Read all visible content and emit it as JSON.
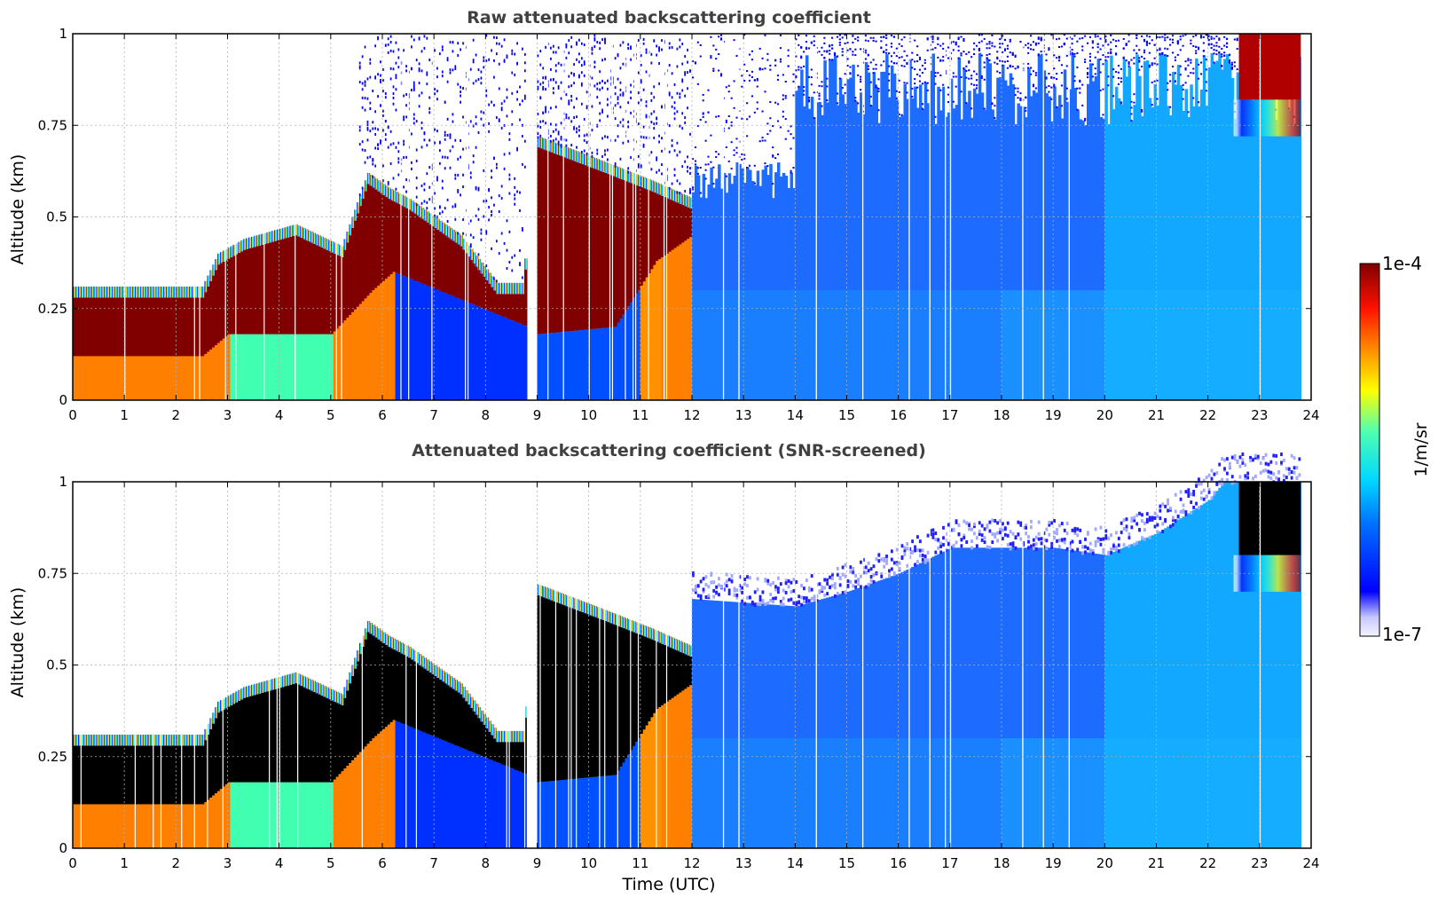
{
  "chart_data": [
    {
      "type": "heatmap",
      "title": "Raw attenuated backscattering coefficient",
      "xlabel": "",
      "ylabel": "Altitude (km)",
      "xlim": [
        0,
        24
      ],
      "ylim": [
        0,
        1
      ],
      "xticks": [
        "0",
        "1",
        "2",
        "3",
        "4",
        "5",
        "6",
        "7",
        "8",
        "9",
        "10",
        "11",
        "12",
        "13",
        "14",
        "15",
        "16",
        "17",
        "18",
        "19",
        "20",
        "21",
        "22",
        "23",
        "24"
      ],
      "yticks": [
        "0",
        "0.25",
        "0.5",
        "0.75",
        "1"
      ],
      "grid": true,
      "screened": false,
      "data_end_hour": 23.8,
      "cloud_top_km": [
        [
          0,
          0.31
        ],
        [
          2.5,
          0.31
        ],
        [
          2.8,
          0.4
        ],
        [
          3.3,
          0.44
        ],
        [
          4.3,
          0.48
        ],
        [
          5.2,
          0.42
        ],
        [
          5.7,
          0.62
        ],
        [
          6.1,
          0.58
        ],
        [
          6.5,
          0.55
        ],
        [
          7.5,
          0.45
        ],
        [
          8.2,
          0.32
        ],
        [
          8.7,
          0.32
        ],
        [
          9.0,
          0.72
        ],
        [
          10.3,
          0.65
        ],
        [
          11.2,
          0.6
        ],
        [
          12.0,
          0.55
        ]
      ],
      "cloud_base_km": [
        [
          0,
          0.12
        ],
        [
          2.5,
          0.12
        ],
        [
          3.0,
          0.18
        ],
        [
          5.0,
          0.18
        ],
        [
          5.8,
          0.3
        ],
        [
          6.2,
          0.35
        ],
        [
          8.8,
          0.2
        ],
        [
          9.0,
          0.18
        ],
        [
          10.5,
          0.2
        ],
        [
          11.3,
          0.38
        ],
        [
          12.0,
          0.45
        ]
      ],
      "top_right_cloud": {
        "t0": 22.6,
        "t1": 23.8,
        "base_km": 0.82
      }
    },
    {
      "type": "heatmap",
      "title": "Attenuated backscattering coefficient (SNR-screened)",
      "xlabel": "Time (UTC)",
      "ylabel": "Altitude (km)",
      "xlim": [
        0,
        24
      ],
      "ylim": [
        0,
        1
      ],
      "xticks": [
        "0",
        "1",
        "2",
        "3",
        "4",
        "5",
        "6",
        "7",
        "8",
        "9",
        "10",
        "11",
        "12",
        "13",
        "14",
        "15",
        "16",
        "17",
        "18",
        "19",
        "20",
        "21",
        "22",
        "23",
        "24"
      ],
      "yticks": [
        "0",
        "0.25",
        "0.5",
        "0.75",
        "1"
      ],
      "grid": true,
      "screened": true,
      "data_end_hour": 23.8,
      "screen_top_km": [
        [
          12,
          0.68
        ],
        [
          14,
          0.66
        ],
        [
          15,
          0.7
        ],
        [
          16,
          0.75
        ],
        [
          17,
          0.82
        ],
        [
          19,
          0.82
        ],
        [
          20,
          0.8
        ],
        [
          21,
          0.86
        ],
        [
          22,
          0.95
        ],
        [
          22.3,
          1.0
        ],
        [
          24,
          1.0
        ]
      ],
      "top_right_cloud": {
        "t0": 22.6,
        "t1": 23.8,
        "base_km": 0.8
      }
    }
  ],
  "colorbar": {
    "max_label": "1e-4",
    "min_label": "1e-7",
    "unit_label": "1/m/sr",
    "colormap": "jet",
    "scale": "log"
  }
}
